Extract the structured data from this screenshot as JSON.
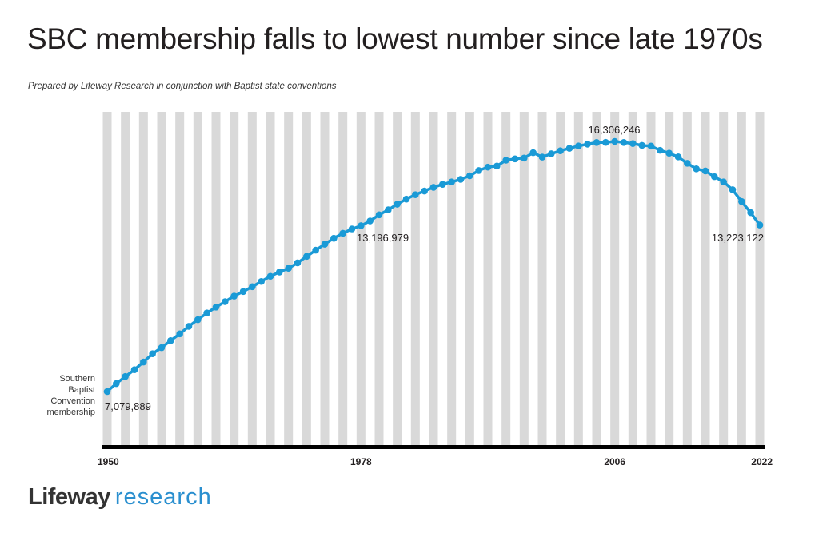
{
  "title": "SBC membership falls to lowest number since late 1970s",
  "subtitle": "Prepared by Lifeway Research in conjunction with Baptist state conventions",
  "logo": {
    "part1": "Lifeway",
    "part2": "research"
  },
  "colors": {
    "line": "#1a9ad6",
    "stripe": "#d9d9d9",
    "axis": "#000000",
    "logo_accent": "#2a8fcf"
  },
  "chart_data": {
    "type": "line",
    "title": "SBC membership falls to lowest number since late 1970s",
    "series_label": [
      "Southern",
      "Baptist",
      "Convention",
      "membership"
    ],
    "x_ticks": [
      "1950",
      "1978",
      "2006",
      "2022"
    ],
    "grid": "alternating vertical stripes every other year",
    "x": [
      1950,
      1951,
      1952,
      1953,
      1954,
      1955,
      1956,
      1957,
      1958,
      1959,
      1960,
      1961,
      1962,
      1963,
      1964,
      1965,
      1966,
      1967,
      1968,
      1969,
      1970,
      1971,
      1972,
      1973,
      1974,
      1975,
      1976,
      1977,
      1978,
      1979,
      1980,
      1981,
      1982,
      1983,
      1984,
      1985,
      1986,
      1987,
      1988,
      1989,
      1990,
      1991,
      1992,
      1993,
      1994,
      1995,
      1996,
      1997,
      1998,
      1999,
      2000,
      2001,
      2002,
      2003,
      2004,
      2005,
      2006,
      2007,
      2008,
      2009,
      2010,
      2011,
      2012,
      2013,
      2014,
      2015,
      2016,
      2017,
      2018,
      2019,
      2020,
      2021,
      2022
    ],
    "values": [
      7079889,
      7373498,
      7634493,
      7883708,
      8169491,
      8474741,
      8700480,
      8956647,
      9206758,
      9485276,
      9731591,
      9978139,
      10193052,
      10395940,
      10601515,
      10770573,
      10947389,
      11140497,
      11332229,
      11487708,
      11628032,
      11826463,
      12065333,
      12295400,
      12515842,
      12733124,
      12917992,
      13078239,
      13196979,
      13372757,
      13600126,
      13782644,
      13991709,
      14178051,
      14341822,
      14477364,
      14613638,
      14722617,
      14812844,
      14907826,
      15038409,
      15232347,
      15358866,
      15398642,
      15614060,
      15663296,
      15691964,
      15891514,
      15729356,
      15851756,
      15960308,
      16052920,
      16137736,
      16206291,
      16267494,
      16270315,
      16306246,
      16266920,
      16228438,
      16160088,
      16136044,
      15978112,
      15872404,
      15735640,
      15499173,
      15294764,
      15216978,
      15005638,
      14813234,
      14525579,
      14089947,
      13680493,
      13223122
    ],
    "data_labels": [
      {
        "year": 1950,
        "text": "7,079,889"
      },
      {
        "year": 1978,
        "text": "13,196,979"
      },
      {
        "year": 2006,
        "text": "16,306,246"
      },
      {
        "year": 2022,
        "text": "13,223,122"
      }
    ]
  }
}
